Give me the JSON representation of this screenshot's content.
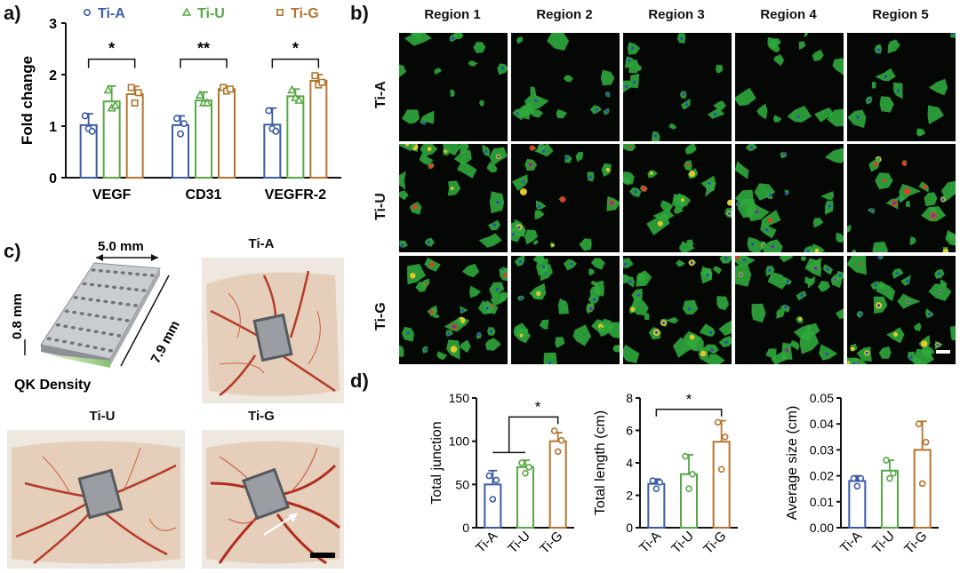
{
  "panel_labels": [
    "a)",
    "b)",
    "c)",
    "d)"
  ],
  "colors": {
    "ti_a": "#3a5ba9",
    "ti_u": "#58a845",
    "ti_g": "#b5742d"
  },
  "chart_data": [
    {
      "type": "bar",
      "panel": "a",
      "ylabel": "Fold change",
      "categories": [
        "VEGF",
        "CD31",
        "VEGFR-2"
      ],
      "ylim": [
        0,
        3
      ],
      "yticks": [
        "0",
        "1",
        "2",
        "3"
      ],
      "legend": [
        "Ti-A",
        "Ti-U",
        "Ti-G"
      ],
      "series": [
        {
          "name": "Ti-A",
          "values": [
            1.02,
            1.02,
            1.03
          ],
          "err": [
            0.22,
            0.18,
            0.32
          ],
          "points": [
            [
              1.2,
              0.95,
              0.9
            ],
            [
              1.15,
              0.85,
              1.05
            ],
            [
              1.3,
              0.95,
              0.9
            ]
          ]
        },
        {
          "name": "Ti-U",
          "values": [
            1.48,
            1.5,
            1.58
          ],
          "err": [
            0.3,
            0.16,
            0.14
          ],
          "points": [
            [
              1.7,
              1.35,
              1.4
            ],
            [
              1.6,
              1.45,
              1.45
            ],
            [
              1.7,
              1.55,
              1.5
            ]
          ]
        },
        {
          "name": "Ti-G",
          "values": [
            1.62,
            1.72,
            1.88
          ],
          "err": [
            0.15,
            0.05,
            0.12
          ],
          "points": [
            [
              1.75,
              1.45,
              1.65
            ],
            [
              1.75,
              1.68,
              1.72
            ],
            [
              1.98,
              1.8,
              1.85
            ]
          ]
        }
      ],
      "annotations": [
        {
          "from": 0,
          "to": 2,
          "group": 0,
          "text": "*"
        },
        {
          "from": 0,
          "to": 2,
          "group": 1,
          "text": "**"
        },
        {
          "from": 0,
          "to": 2,
          "group": 2,
          "text": "*"
        }
      ]
    },
    {
      "type": "bar",
      "panel": "d1",
      "ylabel": "Total junction",
      "categories": [
        "Ti-A",
        "Ti-U",
        "Ti-G"
      ],
      "ylim": [
        0,
        150
      ],
      "yticks": [
        "0",
        "50",
        "100",
        "150"
      ],
      "values": [
        50,
        70,
        100
      ],
      "err": [
        16,
        8,
        10
      ],
      "points": [
        [
          60,
          33,
          55
        ],
        [
          75,
          63,
          70
        ],
        [
          112,
          88,
          101
        ]
      ],
      "annotation": {
        "text": "*"
      }
    },
    {
      "type": "bar",
      "panel": "d2",
      "ylabel": "Total length (cm)",
      "categories": [
        "Ti-A",
        "Ti-U",
        "Ti-G"
      ],
      "ylim": [
        0,
        8
      ],
      "yticks": [
        "0",
        "2",
        "4",
        "6",
        "8"
      ],
      "values": [
        2.7,
        3.3,
        5.3
      ],
      "err": [
        0.3,
        1.2,
        1.3
      ],
      "points": [
        [
          2.9,
          2.4,
          2.8
        ],
        [
          4.4,
          2.4,
          3.3
        ],
        [
          6.5,
          3.6,
          5.6
        ]
      ],
      "annotation": {
        "text": "*"
      }
    },
    {
      "type": "bar",
      "panel": "d3",
      "ylabel": "Average size (cm)",
      "categories": [
        "Ti-A",
        "Ti-U",
        "Ti-G"
      ],
      "ylim": [
        0,
        0.05
      ],
      "yticks": [
        "0.00",
        "0.01",
        "0.02",
        "0.03",
        "0.04",
        "0.05"
      ],
      "values": [
        0.018,
        0.022,
        0.03
      ],
      "err": [
        0.002,
        0.004,
        0.011
      ],
      "points": [
        [
          0.019,
          0.016,
          0.019
        ],
        [
          0.026,
          0.019,
          0.021
        ],
        [
          0.04,
          0.017,
          0.033
        ]
      ]
    }
  ],
  "panel_b": {
    "regions": [
      "Region 1",
      "Region 2",
      "Region 3",
      "Region 4",
      "Region 5"
    ],
    "rows": [
      "Ti-A",
      "Ti-U",
      "Ti-G"
    ]
  },
  "panel_c": {
    "dims": {
      "width": "5.0 mm",
      "length": "7.9 mm",
      "height": "0.8 mm"
    },
    "density_label": "QK Density",
    "photo_titles": [
      "Ti-A",
      "Ti-U",
      "Ti-G"
    ]
  }
}
